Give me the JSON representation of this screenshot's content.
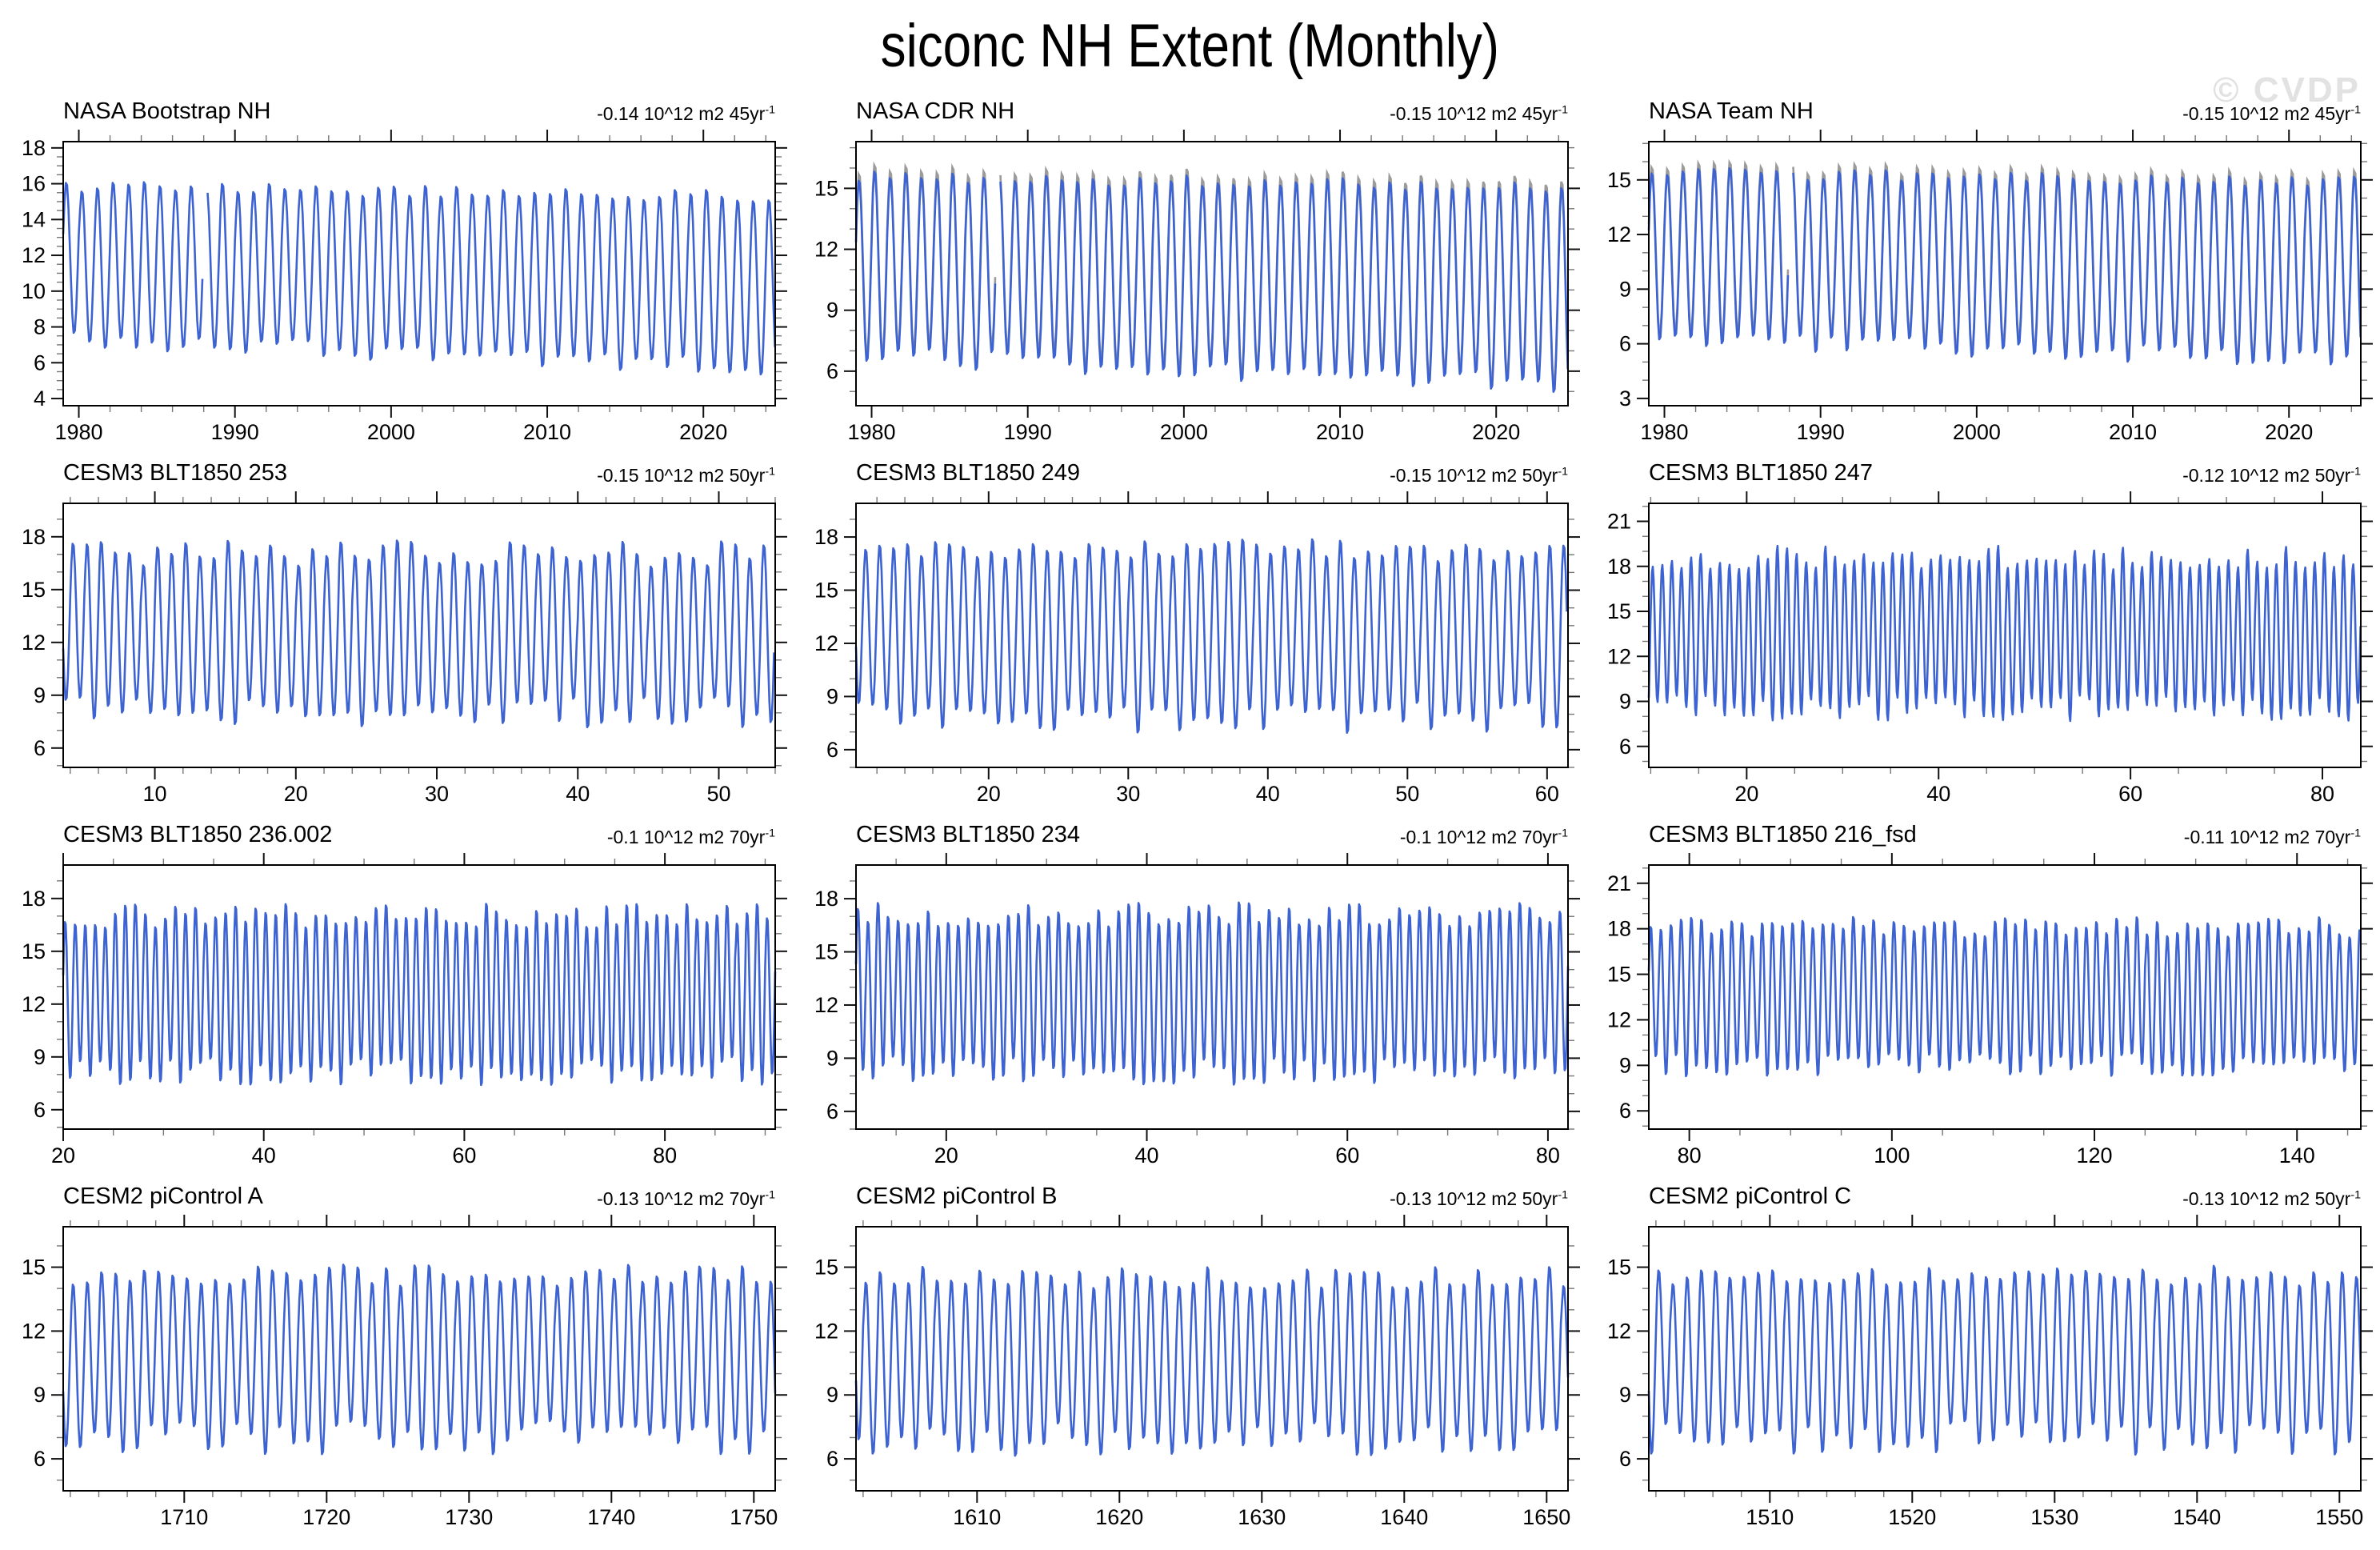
{
  "page": {
    "title": "siconc NH Extent (Monthly)",
    "watermark": "© CVDP",
    "background": "#ffffff",
    "line_color": "#3c63d1",
    "companion_line_color": "#9b9b9b",
    "frame_color": "#000000",
    "minor_tick_color": "#777777"
  },
  "chart_data": [
    {
      "type": "line",
      "title": "NASA Bootstrap NH",
      "trend": "-0.14 10^12 m2 45yr",
      "trend_exp": "-1",
      "x_ticks": [
        1980,
        1990,
        2000,
        2010,
        2020
      ],
      "x_range": [
        1979.0,
        2024.6
      ],
      "y_ticks": [
        4,
        6,
        8,
        10,
        12,
        14,
        16,
        18
      ],
      "y_range": [
        3.6,
        18.35
      ],
      "gaps": [
        [
          1987.92,
          1988.17
        ]
      ],
      "companion": false,
      "series": [
        {
          "name": "NASA Bootstrap NH",
          "points_per_year": 12,
          "max_start": 16.0,
          "max_end": 15.4,
          "min_start": 7.2,
          "min_end": 5.6,
          "max_jitter": 0.35,
          "min_jitter": 0.5
        }
      ]
    },
    {
      "type": "line",
      "title": "NASA CDR NH",
      "trend": "-0.15 10^12 m2 45yr",
      "trend_exp": "-1",
      "x_ticks": [
        1980,
        1990,
        2000,
        2010,
        2020
      ],
      "x_range": [
        1979.0,
        2024.6
      ],
      "y_ticks": [
        6,
        9,
        12,
        15
      ],
      "y_range": [
        4.3,
        17.3
      ],
      "gaps": [
        [
          1987.92,
          1988.17
        ]
      ],
      "companion": true,
      "series": [
        {
          "name": "NASA CDR NH",
          "points_per_year": 12,
          "max_start": 15.7,
          "max_end": 15.2,
          "min_start": 6.6,
          "min_end": 5.2,
          "max_jitter": 0.3,
          "min_jitter": 0.5
        }
      ]
    },
    {
      "type": "line",
      "title": "NASA Team NH",
      "trend": "-0.15 10^12 m2 45yr",
      "trend_exp": "-1",
      "x_ticks": [
        1980,
        1990,
        2000,
        2010,
        2020
      ],
      "x_range": [
        1979.0,
        2024.6
      ],
      "y_ticks": [
        3,
        6,
        9,
        12,
        15
      ],
      "y_range": [
        2.6,
        17.1
      ],
      "gaps": [
        [
          1987.92,
          1988.17
        ]
      ],
      "companion": true,
      "series": [
        {
          "name": "NASA Team NH",
          "points_per_year": 12,
          "max_start": 15.5,
          "max_end": 15.0,
          "min_start": 6.2,
          "min_end": 4.9,
          "max_jitter": 0.3,
          "min_jitter": 0.5
        }
      ]
    },
    {
      "type": "line",
      "title": "CESM3 BLT1850 253",
      "trend": "-0.15 10^12 m2 50yr",
      "trend_exp": "-1",
      "x_ticks": [
        10,
        20,
        30,
        40,
        50
      ],
      "x_range": [
        3.5,
        54.0
      ],
      "y_ticks": [
        6,
        9,
        12,
        15,
        18
      ],
      "y_range": [
        4.9,
        19.9
      ],
      "gaps": [],
      "companion": false,
      "series": [
        {
          "name": "CESM3 BLT1850 253",
          "points_per_year": 12,
          "max_start": 17.2,
          "max_end": 17.2,
          "min_start": 7.9,
          "min_end": 7.9,
          "max_jitter": 0.8,
          "min_jitter": 0.9
        }
      ]
    },
    {
      "type": "line",
      "title": "CESM3 BLT1850 249",
      "trend": "-0.15 10^12 m2 50yr",
      "trend_exp": "-1",
      "x_ticks": [
        20,
        30,
        40,
        50,
        60
      ],
      "x_range": [
        10.5,
        61.5
      ],
      "y_ticks": [
        6,
        9,
        12,
        15,
        18
      ],
      "y_range": [
        5.0,
        19.9
      ],
      "gaps": [],
      "companion": false,
      "series": [
        {
          "name": "CESM3 BLT1850 249",
          "points_per_year": 12,
          "max_start": 17.3,
          "max_end": 17.3,
          "min_start": 7.7,
          "min_end": 7.7,
          "max_jitter": 0.7,
          "min_jitter": 0.9
        }
      ]
    },
    {
      "type": "line",
      "title": "CESM3 BLT1850 247",
      "trend": "-0.12 10^12 m2 50yr",
      "trend_exp": "-1",
      "x_ticks": [
        20,
        40,
        60,
        80
      ],
      "x_range": [
        9.8,
        84.0
      ],
      "y_ticks": [
        6,
        9,
        12,
        15,
        18,
        21
      ],
      "y_range": [
        4.6,
        22.2
      ],
      "gaps": [],
      "companion": false,
      "series": [
        {
          "name": "CESM3 BLT1850 247",
          "points_per_year": 12,
          "max_start": 18.6,
          "max_end": 18.6,
          "min_start": 8.5,
          "min_end": 8.5,
          "max_jitter": 0.8,
          "min_jitter": 0.9
        }
      ]
    },
    {
      "type": "line",
      "title": "CESM3 BLT1850 236.002",
      "trend": "-0.1 10^12 m2 70yr",
      "trend_exp": "-1",
      "x_ticks": [
        20,
        40,
        60,
        80
      ],
      "x_range": [
        20.0,
        91.0
      ],
      "y_ticks": [
        6,
        9,
        12,
        15,
        18
      ],
      "y_range": [
        4.9,
        19.9
      ],
      "gaps": [],
      "companion": false,
      "series": [
        {
          "name": "CESM3 BLT1850 236.002",
          "points_per_year": 12,
          "max_start": 17.1,
          "max_end": 17.1,
          "min_start": 8.1,
          "min_end": 8.1,
          "max_jitter": 0.7,
          "min_jitter": 0.8
        }
      ]
    },
    {
      "type": "line",
      "title": "CESM3 BLT1850 234",
      "trend": "-0.1 10^12 m2 70yr",
      "trend_exp": "-1",
      "x_ticks": [
        20,
        40,
        60,
        80
      ],
      "x_range": [
        11.0,
        82.0
      ],
      "y_ticks": [
        6,
        9,
        12,
        15,
        18
      ],
      "y_range": [
        5.0,
        19.9
      ],
      "gaps": [],
      "companion": false,
      "series": [
        {
          "name": "CESM3 BLT1850 234",
          "points_per_year": 12,
          "max_start": 17.2,
          "max_end": 17.2,
          "min_start": 8.2,
          "min_end": 8.2,
          "max_jitter": 0.7,
          "min_jitter": 0.8
        }
      ]
    },
    {
      "type": "line",
      "title": "CESM3 BLT1850 216_fsd",
      "trend": "-0.11 10^12 m2 70yr",
      "trend_exp": "-1",
      "x_ticks": [
        80,
        100,
        120,
        140
      ],
      "x_range": [
        76.0,
        146.3
      ],
      "y_ticks": [
        6,
        9,
        12,
        15,
        18,
        21
      ],
      "y_range": [
        4.8,
        22.2
      ],
      "gaps": [],
      "companion": false,
      "series": [
        {
          "name": "CESM3 BLT1850 216_fsd",
          "points_per_year": 12,
          "max_start": 18.2,
          "max_end": 18.2,
          "min_start": 8.9,
          "min_end": 8.9,
          "max_jitter": 0.7,
          "min_jitter": 0.8
        }
      ]
    },
    {
      "type": "line",
      "title": "CESM2 piControl A",
      "trend": "-0.13 10^12 m2 70yr",
      "trend_exp": "-1",
      "x_ticks": [
        1710,
        1720,
        1730,
        1740,
        1750
      ],
      "x_range": [
        1701.5,
        1751.5
      ],
      "y_ticks": [
        6,
        9,
        12,
        15
      ],
      "y_range": [
        4.5,
        16.9
      ],
      "gaps": [],
      "companion": false,
      "series": [
        {
          "name": "CESM2 piControl A",
          "points_per_year": 12,
          "max_start": 14.7,
          "max_end": 14.7,
          "min_start": 6.9,
          "min_end": 6.9,
          "max_jitter": 0.5,
          "min_jitter": 0.8
        }
      ]
    },
    {
      "type": "line",
      "title": "CESM2 piControl B",
      "trend": "-0.13 10^12 m2 50yr",
      "trend_exp": "-1",
      "x_ticks": [
        1610,
        1620,
        1630,
        1640,
        1650
      ],
      "x_range": [
        1601.5,
        1651.5
      ],
      "y_ticks": [
        6,
        9,
        12,
        15
      ],
      "y_range": [
        4.5,
        16.9
      ],
      "gaps": [],
      "companion": false,
      "series": [
        {
          "name": "CESM2 piControl B",
          "points_per_year": 12,
          "max_start": 14.6,
          "max_end": 14.6,
          "min_start": 6.8,
          "min_end": 6.8,
          "max_jitter": 0.5,
          "min_jitter": 0.8
        }
      ]
    },
    {
      "type": "line",
      "title": "CESM2 piControl C",
      "trend": "-0.13 10^12 m2 50yr",
      "trend_exp": "-1",
      "x_ticks": [
        1510,
        1520,
        1530,
        1540,
        1550
      ],
      "x_range": [
        1501.5,
        1551.5
      ],
      "y_ticks": [
        6,
        9,
        12,
        15
      ],
      "y_range": [
        4.5,
        16.9
      ],
      "gaps": [],
      "companion": false,
      "series": [
        {
          "name": "CESM2 piControl C",
          "points_per_year": 12,
          "max_start": 14.7,
          "max_end": 14.7,
          "min_start": 6.9,
          "min_end": 6.9,
          "max_jitter": 0.5,
          "min_jitter": 0.8
        }
      ]
    }
  ]
}
